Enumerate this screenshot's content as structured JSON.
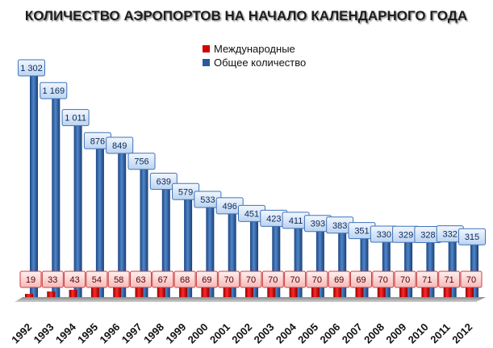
{
  "chart_data": {
    "type": "bar",
    "title": "КОЛИЧЕСТВО АЭРОПОРТОВ НА НАЧАЛО КАЛЕНДАРНОГО ГОДА",
    "categories": [
      "1992",
      "1993",
      "1994",
      "1995",
      "1996",
      "1997",
      "1998",
      "1999",
      "2000",
      "2001",
      "2002",
      "2003",
      "2004",
      "2005",
      "2006",
      "2007",
      "2008",
      "2009",
      "2010",
      "2011",
      "2012"
    ],
    "series": [
      {
        "name": "Международные",
        "color": "#d40000",
        "values": [
          19,
          33,
          43,
          54,
          58,
          63,
          67,
          68,
          69,
          70,
          70,
          70,
          70,
          70,
          69,
          69,
          70,
          70,
          71,
          71,
          70
        ],
        "labels": [
          "19",
          "33",
          "43",
          "54",
          "58",
          "63",
          "67",
          "68",
          "69",
          "70",
          "70",
          "70",
          "70",
          "70",
          "69",
          "69",
          "70",
          "70",
          "71",
          "71",
          "70"
        ]
      },
      {
        "name": "Общее количество",
        "color": "#2a5a9a",
        "values": [
          1302,
          1169,
          1011,
          876,
          849,
          756,
          639,
          579,
          533,
          496,
          451,
          423,
          411,
          393,
          383,
          351,
          330,
          329,
          328,
          332,
          315
        ],
        "labels": [
          "1 302",
          "1 169",
          "1 011",
          "876",
          "849",
          "756",
          "639",
          "579",
          "533",
          "496",
          "451",
          "423",
          "411",
          "393",
          "383",
          "351",
          "330",
          "329",
          "328",
          "332",
          "315"
        ]
      }
    ],
    "xlabel": "",
    "ylabel": "",
    "ylim": [
      0,
      1302
    ],
    "grid": false,
    "legend": "top-center",
    "style": "3d-columns-with-data-labels"
  }
}
